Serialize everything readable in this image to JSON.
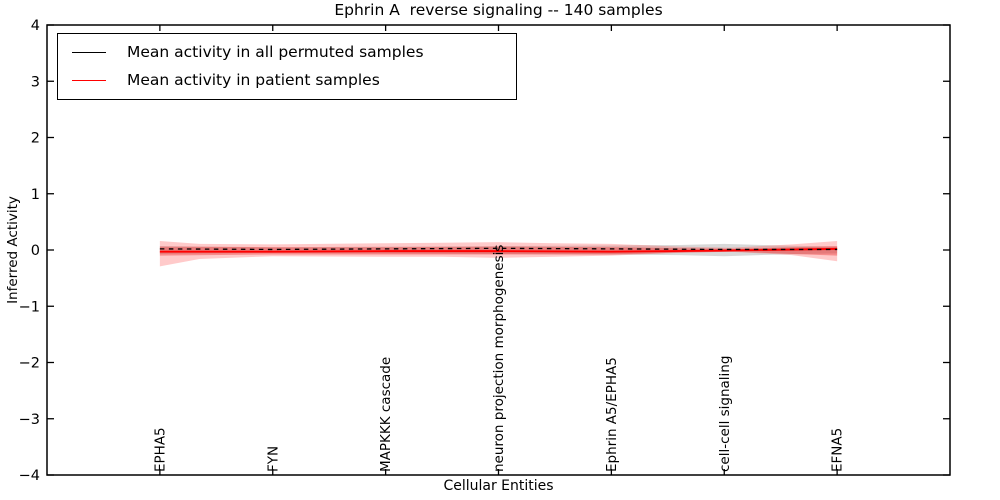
{
  "chart_data": {
    "type": "line",
    "title": "Ephrin A  reverse signaling -- 140 samples",
    "xlabel": "Cellular Entities",
    "ylabel": "Inferred Activity",
    "ylim": [
      -4,
      4
    ],
    "yticks": [
      4,
      3,
      2,
      1,
      0,
      -1,
      -2,
      -3,
      -4
    ],
    "grid": false,
    "legend_position": "upper left",
    "categories": [
      "EPHA5",
      "FYN",
      "MAPKKK cascade",
      "neuron projection morphogenesis",
      "Ephrin A5/EPHA5",
      "cell-cell signaling",
      "EFNA5"
    ],
    "series": [
      {
        "name": "Mean activity in all permuted samples",
        "color": "#000000",
        "plot_style": "dashed",
        "values": [
          0.02,
          0.01,
          0.02,
          0.03,
          0.02,
          0.01,
          0.01
        ]
      },
      {
        "name": "Mean activity in patient samples",
        "color": "#ff0000",
        "plot_style": "solid",
        "values": [
          -0.03,
          -0.03,
          -0.02,
          -0.02,
          -0.03,
          -0.01,
          0.02
        ]
      }
    ],
    "bands": [
      {
        "name": "permuted-std-band",
        "color": "rgba(125,125,125,0.30)",
        "x": [
          0,
          1,
          2,
          3,
          4,
          4.6,
          5,
          5.5,
          6
        ],
        "upper": [
          0.07,
          0.05,
          0.06,
          0.07,
          0.08,
          0.09,
          0.11,
          0.08,
          0.06
        ],
        "lower": [
          -0.07,
          -0.05,
          -0.06,
          -0.07,
          -0.08,
          -0.09,
          -0.11,
          -0.08,
          -0.06
        ]
      },
      {
        "name": "patient-std-band",
        "color": "rgba(255,45,45,0.25)",
        "x": [
          0,
          0.35,
          1,
          2,
          2.5,
          3,
          3.5,
          4,
          4.6,
          5.05,
          5.6,
          6
        ],
        "upper": [
          0.16,
          0.11,
          0.1,
          0.12,
          0.13,
          0.14,
          0.12,
          0.11,
          0.06,
          0.04,
          0.1,
          0.16
        ],
        "lower": [
          -0.29,
          -0.16,
          -0.11,
          -0.12,
          -0.12,
          -0.14,
          -0.12,
          -0.1,
          -0.05,
          -0.03,
          -0.09,
          -0.2
        ]
      },
      {
        "name": "patient-core-band",
        "color": "rgba(235,40,40,0.38)",
        "x": [
          0,
          1,
          2,
          3,
          4,
          4.7,
          5.1,
          5.6,
          6
        ],
        "upper": [
          0.06,
          0.05,
          0.05,
          0.06,
          0.05,
          0.03,
          0.02,
          0.05,
          0.07
        ],
        "lower": [
          -0.1,
          -0.08,
          -0.08,
          -0.08,
          -0.08,
          -0.04,
          -0.03,
          -0.07,
          -0.1
        ]
      }
    ]
  }
}
